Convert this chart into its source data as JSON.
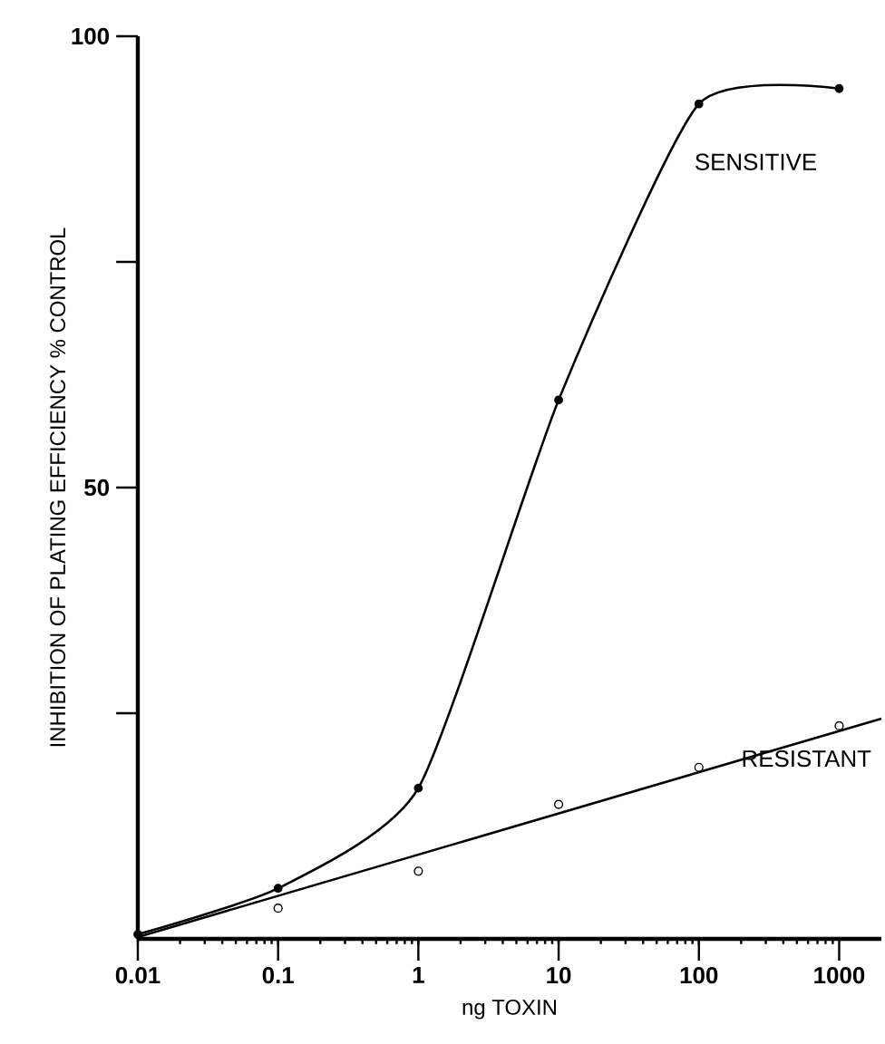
{
  "chart_data": {
    "type": "line",
    "xlabel": "ng TOXIN",
    "ylabel": "INHIBITION OF PLATING EFFICIENCY  % CONTROL",
    "log": "x",
    "xlim": [
      0.01,
      2000
    ],
    "ylim": [
      0,
      100
    ],
    "xticks": [
      0.01,
      0.1,
      1,
      10,
      100,
      1000
    ],
    "yticks": [
      {
        "value": 25,
        "label": null
      },
      50,
      {
        "value": 75,
        "label": null
      },
      100
    ],
    "series": [
      {
        "name": "SENSITIVE",
        "color": "#000000",
        "marker": "circle",
        "x": [
          0.01,
          0.1,
          1,
          10,
          100,
          1000
        ],
        "values": [
          0.5,
          5.6,
          16.7,
          59.7,
          92.5,
          94.2
        ]
      },
      {
        "type": "scatter",
        "color": "#000000",
        "marker": "circle",
        "x": [
          0.1,
          1,
          10,
          100,
          1000
        ],
        "values": [
          3.4,
          7.5,
          14.9,
          19.0,
          23.6
        ]
      },
      {
        "name": "RESISTANT",
        "color": "#000000",
        "marker": "none",
        "x": [
          0.01,
          2000
        ],
        "values": [
          0.2,
          24.4
        ]
      }
    ]
  }
}
